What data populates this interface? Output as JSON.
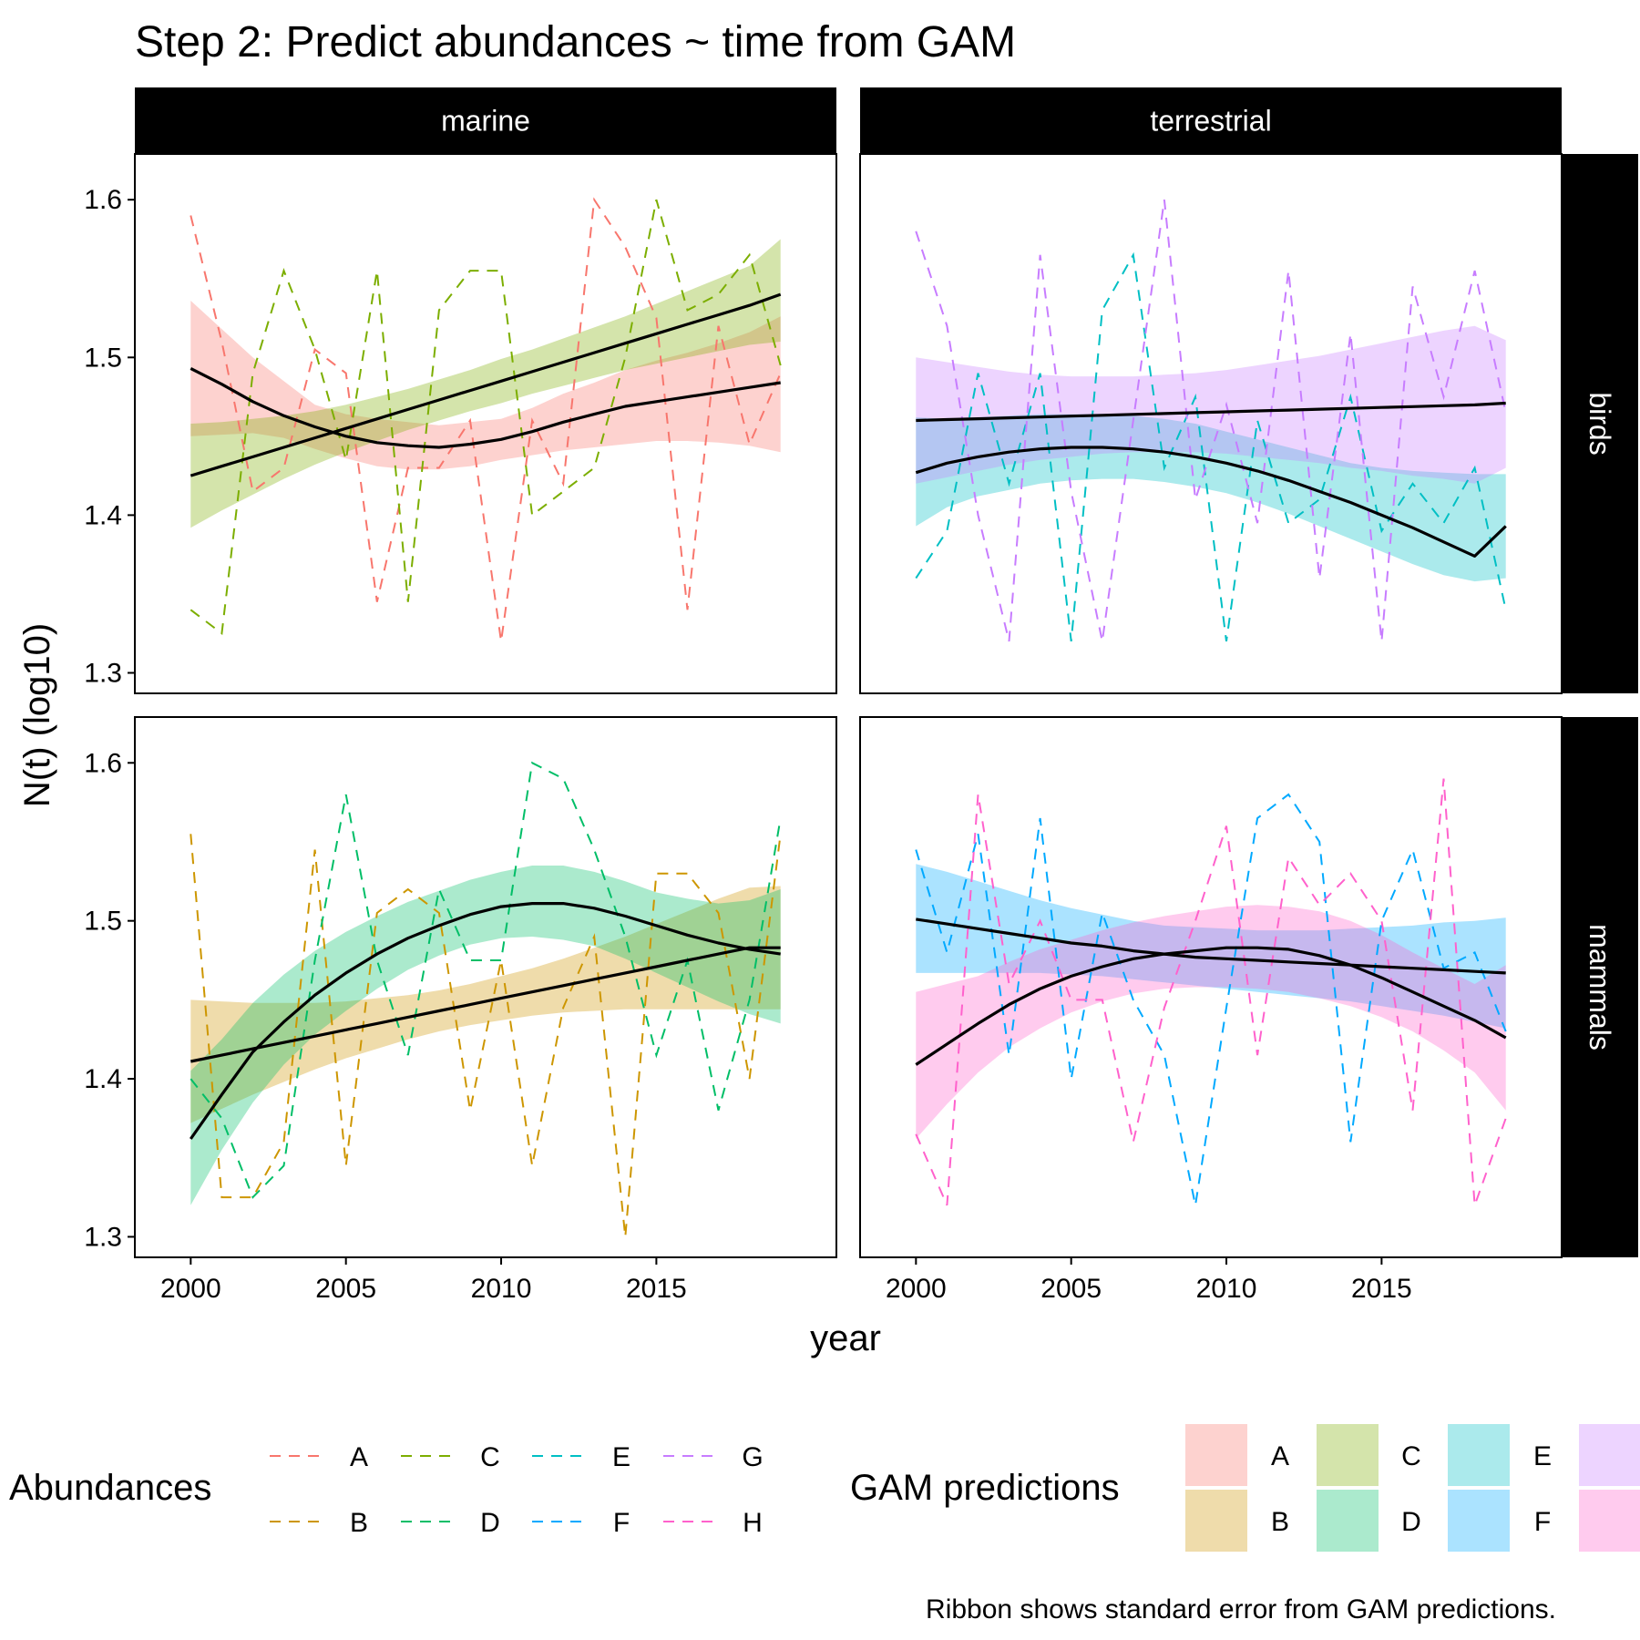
{
  "chart_data": {
    "type": "line",
    "title": "Step 2: Predict abundances ~ time from GAM",
    "xlabel": "year",
    "ylabel": "N(t) (log10)",
    "xlim": [
      1998.2,
      2020.8
    ],
    "ylim": [
      1.287,
      1.629
    ],
    "x_ticks": [
      2000,
      2005,
      2010,
      2015
    ],
    "y_ticks": [
      1.3,
      1.4,
      1.5,
      1.6
    ],
    "x_tick_labels": [
      "2000",
      "2005",
      "2010",
      "2015"
    ],
    "y_tick_labels": [
      "1.3",
      "1.4",
      "1.5",
      "1.6"
    ],
    "facet_cols": [
      "marine",
      "terrestrial"
    ],
    "facet_rows": [
      "birds",
      "mammals"
    ],
    "years": [
      2000,
      2001,
      2002,
      2003,
      2004,
      2005,
      2006,
      2007,
      2008,
      2009,
      2010,
      2011,
      2012,
      2013,
      2014,
      2015,
      2016,
      2017,
      2018,
      2019
    ],
    "colors": {
      "A": "#F8766D",
      "B": "#CD9600",
      "C": "#7CAE00",
      "D": "#00BE67",
      "E": "#00BFC4",
      "F": "#00A9FF",
      "G": "#C77CFF",
      "H": "#FF61CC"
    },
    "panels": [
      {
        "col": "marine",
        "row": "birds",
        "series": [
          {
            "name": "A",
            "abundance": [
              1.59,
              1.51,
              1.415,
              1.43,
              1.505,
              1.49,
              1.345,
              1.43,
              1.43,
              1.46,
              1.32,
              1.46,
              1.42,
              1.6,
              1.57,
              1.525,
              1.34,
              1.52,
              1.445,
              1.49
            ],
            "fit": [
              1.493,
              1.483,
              1.472,
              1.463,
              1.456,
              1.45,
              1.446,
              1.444,
              1.443,
              1.445,
              1.448,
              1.453,
              1.459,
              1.464,
              1.469,
              1.472,
              1.475,
              1.478,
              1.481,
              1.484
            ],
            "se_lower": [
              1.45,
              1.451,
              1.452,
              1.449,
              1.442,
              1.436,
              1.431,
              1.429,
              1.429,
              1.431,
              1.435,
              1.438,
              1.441,
              1.443,
              1.445,
              1.447,
              1.447,
              1.446,
              1.444,
              1.44
            ],
            "se_upper": [
              1.536,
              1.518,
              1.5,
              1.485,
              1.47,
              1.464,
              1.461,
              1.459,
              1.457,
              1.459,
              1.461,
              1.468,
              1.477,
              1.484,
              1.492,
              1.498,
              1.503,
              1.509,
              1.516,
              1.526
            ]
          },
          {
            "name": "C",
            "abundance": [
              1.34,
              1.325,
              1.49,
              1.555,
              1.505,
              1.435,
              1.555,
              1.345,
              1.53,
              1.555,
              1.555,
              1.4,
              1.415,
              1.43,
              1.5,
              1.6,
              1.53,
              1.54,
              1.565,
              1.495
            ],
            "fit": [
              1.425,
              1.431,
              1.437,
              1.443,
              1.449,
              1.455,
              1.461,
              1.467,
              1.473,
              1.479,
              1.485,
              1.491,
              1.497,
              1.503,
              1.509,
              1.515,
              1.521,
              1.527,
              1.533,
              1.54
            ],
            "se_lower": [
              1.392,
              1.403,
              1.413,
              1.423,
              1.432,
              1.44,
              1.447,
              1.454,
              1.46,
              1.466,
              1.471,
              1.477,
              1.482,
              1.487,
              1.492,
              1.496,
              1.5,
              1.504,
              1.508,
              1.51
            ],
            "se_upper": [
              1.458,
              1.459,
              1.461,
              1.463,
              1.466,
              1.47,
              1.475,
              1.48,
              1.486,
              1.492,
              1.499,
              1.505,
              1.512,
              1.519,
              1.526,
              1.534,
              1.542,
              1.55,
              1.558,
              1.575
            ]
          }
        ]
      },
      {
        "col": "terrestrial",
        "row": "birds",
        "series": [
          {
            "name": "E",
            "abundance": [
              1.36,
              1.39,
              1.49,
              1.42,
              1.49,
              1.32,
              1.53,
              1.565,
              1.43,
              1.475,
              1.32,
              1.46,
              1.395,
              1.41,
              1.475,
              1.39,
              1.42,
              1.395,
              1.43,
              1.34
            ],
            "fit": [
              1.427,
              1.433,
              1.437,
              1.44,
              1.442,
              1.443,
              1.443,
              1.442,
              1.44,
              1.437,
              1.433,
              1.428,
              1.422,
              1.415,
              1.408,
              1.4,
              1.392,
              1.383,
              1.374,
              1.393
            ],
            "se_lower": [
              1.393,
              1.405,
              1.412,
              1.416,
              1.42,
              1.422,
              1.423,
              1.423,
              1.421,
              1.418,
              1.414,
              1.408,
              1.401,
              1.393,
              1.385,
              1.377,
              1.369,
              1.362,
              1.358,
              1.36
            ],
            "se_upper": [
              1.462,
              1.461,
              1.462,
              1.463,
              1.464,
              1.464,
              1.464,
              1.463,
              1.461,
              1.458,
              1.453,
              1.448,
              1.443,
              1.438,
              1.433,
              1.43,
              1.428,
              1.427,
              1.426,
              1.426
            ]
          },
          {
            "name": "G",
            "abundance": [
              1.58,
              1.52,
              1.4,
              1.32,
              1.565,
              1.415,
              1.32,
              1.46,
              1.6,
              1.41,
              1.47,
              1.395,
              1.555,
              1.36,
              1.515,
              1.32,
              1.545,
              1.475,
              1.555,
              1.465
            ],
            "fit": [
              1.46,
              1.4606,
              1.4611,
              1.4617,
              1.4622,
              1.4628,
              1.4633,
              1.4639,
              1.4644,
              1.465,
              1.4655,
              1.4661,
              1.4666,
              1.4672,
              1.4677,
              1.4683,
              1.4688,
              1.4694,
              1.4699,
              1.471
            ],
            "se_lower": [
              1.42,
              1.424,
              1.428,
              1.432,
              1.435,
              1.437,
              1.439,
              1.44,
              1.44,
              1.44,
              1.439,
              1.437,
              1.435,
              1.433,
              1.43,
              1.428,
              1.425,
              1.423,
              1.42,
              1.43
            ],
            "se_upper": [
              1.5,
              1.497,
              1.494,
              1.491,
              1.489,
              1.488,
              1.488,
              1.488,
              1.489,
              1.49,
              1.492,
              1.495,
              1.498,
              1.501,
              1.505,
              1.509,
              1.513,
              1.517,
              1.52,
              1.511
            ]
          }
        ]
      },
      {
        "col": "marine",
        "row": "mammals",
        "series": [
          {
            "name": "B",
            "abundance": [
              1.555,
              1.325,
              1.325,
              1.36,
              1.545,
              1.345,
              1.505,
              1.52,
              1.505,
              1.38,
              1.475,
              1.345,
              1.445,
              1.49,
              1.3,
              1.53,
              1.53,
              1.505,
              1.4,
              1.555
            ],
            "fit": [
              1.411,
              1.415,
              1.419,
              1.423,
              1.427,
              1.431,
              1.435,
              1.439,
              1.443,
              1.447,
              1.451,
              1.455,
              1.459,
              1.463,
              1.467,
              1.471,
              1.475,
              1.479,
              1.483,
              1.483
            ],
            "se_lower": [
              1.372,
              1.381,
              1.39,
              1.398,
              1.406,
              1.413,
              1.419,
              1.425,
              1.43,
              1.434,
              1.437,
              1.44,
              1.442,
              1.443,
              1.444,
              1.444,
              1.444,
              1.444,
              1.444,
              1.444
            ],
            "se_upper": [
              1.45,
              1.449,
              1.448,
              1.448,
              1.448,
              1.449,
              1.451,
              1.453,
              1.456,
              1.46,
              1.465,
              1.47,
              1.476,
              1.483,
              1.49,
              1.498,
              1.506,
              1.514,
              1.521,
              1.522
            ]
          },
          {
            "name": "D",
            "abundance": [
              1.4,
              1.375,
              1.325,
              1.345,
              1.475,
              1.58,
              1.475,
              1.415,
              1.52,
              1.475,
              1.475,
              1.6,
              1.59,
              1.545,
              1.49,
              1.415,
              1.475,
              1.38,
              1.45,
              1.565
            ],
            "fit": [
              1.362,
              1.39,
              1.417,
              1.436,
              1.453,
              1.467,
              1.479,
              1.489,
              1.497,
              1.504,
              1.509,
              1.511,
              1.511,
              1.508,
              1.503,
              1.497,
              1.491,
              1.486,
              1.482,
              1.479
            ],
            "se_lower": [
              1.32,
              1.355,
              1.385,
              1.409,
              1.428,
              1.443,
              1.457,
              1.469,
              1.478,
              1.485,
              1.489,
              1.49,
              1.488,
              1.484,
              1.476,
              1.467,
              1.458,
              1.449,
              1.441,
              1.435
            ],
            "se_upper": [
              1.405,
              1.425,
              1.448,
              1.466,
              1.481,
              1.493,
              1.503,
              1.512,
              1.519,
              1.526,
              1.531,
              1.535,
              1.535,
              1.531,
              1.525,
              1.518,
              1.514,
              1.511,
              1.513,
              1.52
            ]
          }
        ]
      },
      {
        "col": "terrestrial",
        "row": "mammals",
        "series": [
          {
            "name": "F",
            "abundance": [
              1.545,
              1.48,
              1.555,
              1.415,
              1.565,
              1.4,
              1.505,
              1.45,
              1.415,
              1.32,
              1.445,
              1.565,
              1.58,
              1.55,
              1.36,
              1.5,
              1.545,
              1.47,
              1.48,
              1.43
            ],
            "fit": [
              1.501,
              1.498,
              1.495,
              1.492,
              1.489,
              1.486,
              1.484,
              1.481,
              1.479,
              1.477,
              1.476,
              1.475,
              1.474,
              1.473,
              1.472,
              1.471,
              1.47,
              1.469,
              1.468,
              1.467
            ],
            "se_lower": [
              1.467,
              1.467,
              1.467,
              1.467,
              1.467,
              1.466,
              1.465,
              1.463,
              1.461,
              1.459,
              1.457,
              1.455,
              1.453,
              1.451,
              1.449,
              1.446,
              1.443,
              1.44,
              1.436,
              1.432
            ],
            "se_upper": [
              1.536,
              1.531,
              1.525,
              1.519,
              1.513,
              1.508,
              1.504,
              1.5,
              1.497,
              1.496,
              1.495,
              1.494,
              1.494,
              1.494,
              1.495,
              1.496,
              1.497,
              1.499,
              1.5,
              1.502
            ]
          },
          {
            "name": "H",
            "abundance": [
              1.365,
              1.32,
              1.58,
              1.46,
              1.5,
              1.45,
              1.45,
              1.36,
              1.445,
              1.5,
              1.56,
              1.415,
              1.54,
              1.51,
              1.53,
              1.5,
              1.38,
              1.59,
              1.32,
              1.375
            ],
            "fit": [
              1.409,
              1.422,
              1.435,
              1.447,
              1.457,
              1.465,
              1.471,
              1.476,
              1.479,
              1.481,
              1.483,
              1.483,
              1.482,
              1.478,
              1.472,
              1.464,
              1.455,
              1.446,
              1.437,
              1.426
            ],
            "se_lower": [
              1.362,
              1.384,
              1.404,
              1.42,
              1.432,
              1.442,
              1.449,
              1.454,
              1.457,
              1.458,
              1.458,
              1.457,
              1.455,
              1.451,
              1.446,
              1.439,
              1.43,
              1.418,
              1.404,
              1.38
            ],
            "se_upper": [
              1.455,
              1.46,
              1.465,
              1.474,
              1.482,
              1.488,
              1.494,
              1.499,
              1.503,
              1.506,
              1.509,
              1.51,
              1.509,
              1.506,
              1.5,
              1.491,
              1.48,
              1.47,
              1.46,
              1.472
            ]
          }
        ]
      }
    ],
    "legend": {
      "abundances": {
        "title": "Abundances",
        "items": [
          "A",
          "C",
          "E",
          "G",
          "B",
          "D",
          "F",
          "H"
        ]
      },
      "gam": {
        "title": "GAM predictions",
        "items": [
          "A",
          "C",
          "E",
          "",
          "B",
          "D",
          "F",
          ""
        ],
        "swatches": [
          "A",
          "C",
          "E",
          "G",
          "B",
          "D",
          "F",
          "H"
        ]
      }
    },
    "caption": "Ribbon shows standard error from GAM predictions."
  }
}
